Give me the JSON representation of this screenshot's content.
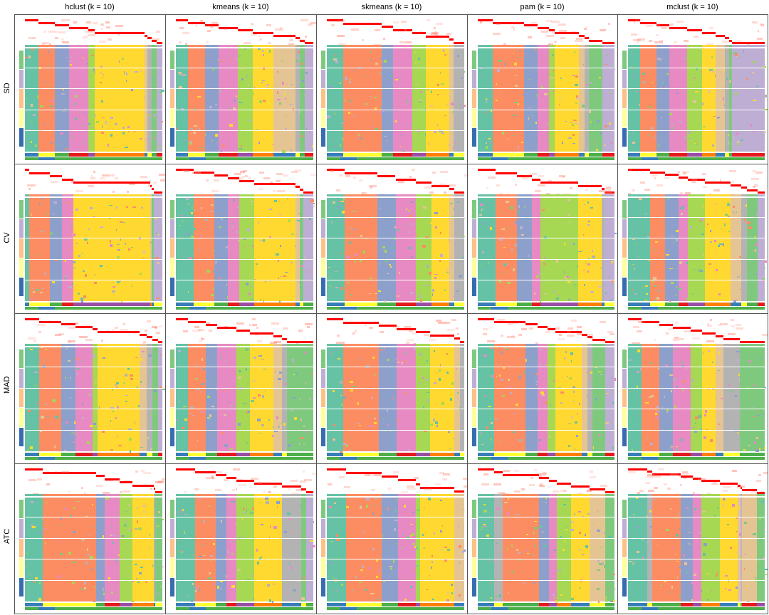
{
  "figure": {
    "column_titles": [
      "hclust (k = 10)",
      "kmeans (k = 10)",
      "skmeans (k = 10)",
      "pam (k = 10)",
      "mclust (k = 10)"
    ],
    "row_labels": [
      "SD",
      "CV",
      "MAD",
      "ATC"
    ]
  },
  "palette": {
    "c1": "#66C2A5",
    "c2": "#FC8D62",
    "c3": "#8DA0CB",
    "c4": "#E78AC3",
    "c5": "#A6D854",
    "c6": "#FFD92F",
    "c7": "#E5C494",
    "c8": "#B3B3B3",
    "c9": "#7FC97F",
    "c10": "#BEAED4",
    "membership": "#FF0000",
    "left_annotation": [
      "#7FC97F",
      "#BEAED4",
      "#FDC086",
      "#FFFF99",
      "#386CB0"
    ],
    "bottom_row1": [
      "#377EB8",
      "#FFFF33",
      "#4DAF4A",
      "#E41A1C",
      "#984EA3",
      "#FF7F00"
    ],
    "bottom_row2": [
      "#4DAF4A",
      "#377EB8"
    ]
  },
  "chart_data": {
    "type": "heatmap",
    "title": "Consensus partition heatmaps, k = 10",
    "xlabel": "",
    "ylabel": "",
    "rows": [
      "SD",
      "CV",
      "MAD",
      "ATC"
    ],
    "columns": [
      "hclust",
      "kmeans",
      "skmeans",
      "pam",
      "mclust"
    ],
    "k": 10,
    "panels": [
      {
        "row": "SD",
        "method": "hclust",
        "bands": [
          [
            "c1",
            10
          ],
          [
            "c2",
            12
          ],
          [
            "c3",
            10
          ],
          [
            "c4",
            14
          ],
          [
            "c5",
            5
          ],
          [
            "c6",
            36
          ],
          [
            "c7",
            2
          ],
          [
            "c8",
            3
          ],
          [
            "c9",
            4
          ],
          [
            "c10",
            4
          ]
        ]
      },
      {
        "row": "SD",
        "method": "kmeans",
        "bands": [
          [
            "c1",
            9
          ],
          [
            "c2",
            12
          ],
          [
            "c3",
            10
          ],
          [
            "c4",
            14
          ],
          [
            "c5",
            11
          ],
          [
            "c6",
            15
          ],
          [
            "c7",
            16
          ],
          [
            "c8",
            3
          ],
          [
            "c9",
            4
          ],
          [
            "c10",
            6
          ]
        ]
      },
      {
        "row": "SD",
        "method": "skmeans",
        "bands": [
          [
            "c1",
            12
          ],
          [
            "c2",
            28
          ],
          [
            "c3",
            8
          ],
          [
            "c4",
            14
          ],
          [
            "c5",
            10
          ],
          [
            "c6",
            17
          ],
          [
            "c7",
            3
          ],
          [
            "c8",
            8
          ]
        ]
      },
      {
        "row": "SD",
        "method": "pam",
        "bands": [
          [
            "c1",
            11
          ],
          [
            "c2",
            23
          ],
          [
            "c3",
            10
          ],
          [
            "c4",
            8
          ],
          [
            "c5",
            4
          ],
          [
            "c6",
            18
          ],
          [
            "c7",
            4
          ],
          [
            "c8",
            3
          ],
          [
            "c9",
            10
          ],
          [
            "c10",
            9
          ]
        ]
      },
      {
        "row": "SD",
        "method": "mclust",
        "bands": [
          [
            "c1",
            9
          ],
          [
            "c2",
            12
          ],
          [
            "c3",
            9
          ],
          [
            "c4",
            13
          ],
          [
            "c5",
            11
          ],
          [
            "c6",
            10
          ],
          [
            "c7",
            7
          ],
          [
            "c8",
            3
          ],
          [
            "c9",
            2
          ],
          [
            "c10",
            24
          ]
        ]
      },
      {
        "row": "CV",
        "method": "hclust",
        "bands": [
          [
            "c1",
            3
          ],
          [
            "c2",
            15
          ],
          [
            "c3",
            9
          ],
          [
            "c4",
            8
          ],
          [
            "c6",
            56
          ],
          [
            "c7",
            1
          ],
          [
            "c9",
            2
          ],
          [
            "c10",
            6
          ]
        ]
      },
      {
        "row": "CV",
        "method": "kmeans",
        "bands": [
          [
            "c1",
            13
          ],
          [
            "c2",
            15
          ],
          [
            "c3",
            10
          ],
          [
            "c4",
            8
          ],
          [
            "c5",
            11
          ],
          [
            "c6",
            30
          ],
          [
            "c7",
            3
          ],
          [
            "c9",
            3
          ],
          [
            "c10",
            7
          ]
        ]
      },
      {
        "row": "CV",
        "method": "skmeans",
        "bands": [
          [
            "c1",
            13
          ],
          [
            "c2",
            24
          ],
          [
            "c3",
            13
          ],
          [
            "c4",
            15
          ],
          [
            "c5",
            11
          ],
          [
            "c6",
            13
          ],
          [
            "c7",
            4
          ],
          [
            "c8",
            7
          ]
        ]
      },
      {
        "row": "CV",
        "method": "pam",
        "bands": [
          [
            "c1",
            13
          ],
          [
            "c2",
            15
          ],
          [
            "c3",
            11
          ],
          [
            "c4",
            6
          ],
          [
            "c5",
            27
          ],
          [
            "c6",
            17
          ],
          [
            "c8",
            2
          ],
          [
            "c10",
            7
          ]
        ]
      },
      {
        "row": "CV",
        "method": "mclust",
        "bands": [
          [
            "c1",
            16
          ],
          [
            "c2",
            11
          ],
          [
            "c3",
            10
          ],
          [
            "c4",
            7
          ],
          [
            "c5",
            12
          ],
          [
            "c6",
            19
          ],
          [
            "c7",
            8
          ],
          [
            "c8",
            4
          ],
          [
            "c9",
            8
          ],
          [
            "c10",
            5
          ]
        ]
      },
      {
        "row": "MAD",
        "method": "hclust",
        "bands": [
          [
            "c1",
            10
          ],
          [
            "c2",
            16
          ],
          [
            "c3",
            10
          ],
          [
            "c4",
            12
          ],
          [
            "c5",
            4
          ],
          [
            "c6",
            30
          ],
          [
            "c7",
            5
          ],
          [
            "c8",
            4
          ],
          [
            "c9",
            4
          ],
          [
            "c10",
            3
          ]
        ]
      },
      {
        "row": "MAD",
        "method": "kmeans",
        "bands": [
          [
            "c1",
            9
          ],
          [
            "c2",
            13
          ],
          [
            "c3",
            8
          ],
          [
            "c4",
            14
          ],
          [
            "c5",
            10
          ],
          [
            "c6",
            17
          ],
          [
            "c7",
            6
          ],
          [
            "c8",
            4
          ],
          [
            "c9",
            19
          ]
        ]
      },
      {
        "row": "MAD",
        "method": "skmeans",
        "bands": [
          [
            "c1",
            12
          ],
          [
            "c2",
            26
          ],
          [
            "c3",
            13
          ],
          [
            "c4",
            14
          ],
          [
            "c5",
            10
          ],
          [
            "c6",
            18
          ],
          [
            "c7",
            4
          ],
          [
            "c8",
            3
          ]
        ]
      },
      {
        "row": "MAD",
        "method": "pam",
        "bands": [
          [
            "c1",
            12
          ],
          [
            "c2",
            23
          ],
          [
            "c3",
            9
          ],
          [
            "c4",
            7
          ],
          [
            "c5",
            6
          ],
          [
            "c6",
            19
          ],
          [
            "c7",
            4
          ],
          [
            "c8",
            4
          ],
          [
            "c9",
            9
          ],
          [
            "c10",
            7
          ]
        ]
      },
      {
        "row": "MAD",
        "method": "mclust",
        "bands": [
          [
            "c1",
            10
          ],
          [
            "c2",
            13
          ],
          [
            "c3",
            10
          ],
          [
            "c4",
            13
          ],
          [
            "c5",
            8
          ],
          [
            "c6",
            10
          ],
          [
            "c7",
            6
          ],
          [
            "c8",
            12
          ],
          [
            "c9",
            18
          ]
        ]
      },
      {
        "row": "ATC",
        "method": "hclust",
        "bands": [
          [
            "c1",
            13
          ],
          [
            "c2",
            39
          ],
          [
            "c3",
            6
          ],
          [
            "c4",
            11
          ],
          [
            "c5",
            9
          ],
          [
            "c6",
            16
          ],
          [
            "c8",
            1
          ],
          [
            "c9",
            5
          ]
        ]
      },
      {
        "row": "ATC",
        "method": "kmeans",
        "bands": [
          [
            "c1",
            14
          ],
          [
            "c2",
            15
          ],
          [
            "c3",
            8
          ],
          [
            "c4",
            7
          ],
          [
            "c5",
            13
          ],
          [
            "c6",
            20
          ],
          [
            "c8",
            14
          ],
          [
            "c9",
            4
          ],
          [
            "c10",
            5
          ]
        ]
      },
      {
        "row": "ATC",
        "method": "skmeans",
        "bands": [
          [
            "c1",
            14
          ],
          [
            "c2",
            26
          ],
          [
            "c3",
            12
          ],
          [
            "c4",
            13
          ],
          [
            "c5",
            3
          ],
          [
            "c6",
            25
          ],
          [
            "c7",
            7
          ]
        ]
      },
      {
        "row": "ATC",
        "method": "pam",
        "bands": [
          [
            "c1",
            12
          ],
          [
            "c8",
            6
          ],
          [
            "c2",
            27
          ],
          [
            "c3",
            7
          ],
          [
            "c4",
            6
          ],
          [
            "c5",
            10
          ],
          [
            "c6",
            14
          ],
          [
            "c7",
            11
          ],
          [
            "c9",
            7
          ]
        ]
      },
      {
        "row": "ATC",
        "method": "mclust",
        "bands": [
          [
            "c1",
            14
          ],
          [
            "c8",
            4
          ],
          [
            "c2",
            21
          ],
          [
            "c3",
            9
          ],
          [
            "c4",
            6
          ],
          [
            "c5",
            14
          ],
          [
            "c6",
            13
          ],
          [
            "c7",
            2
          ],
          [
            "c10",
            1
          ],
          [
            "c7",
            11
          ],
          [
            "c9",
            6
          ]
        ]
      }
    ],
    "grid": false,
    "legend": "none"
  }
}
